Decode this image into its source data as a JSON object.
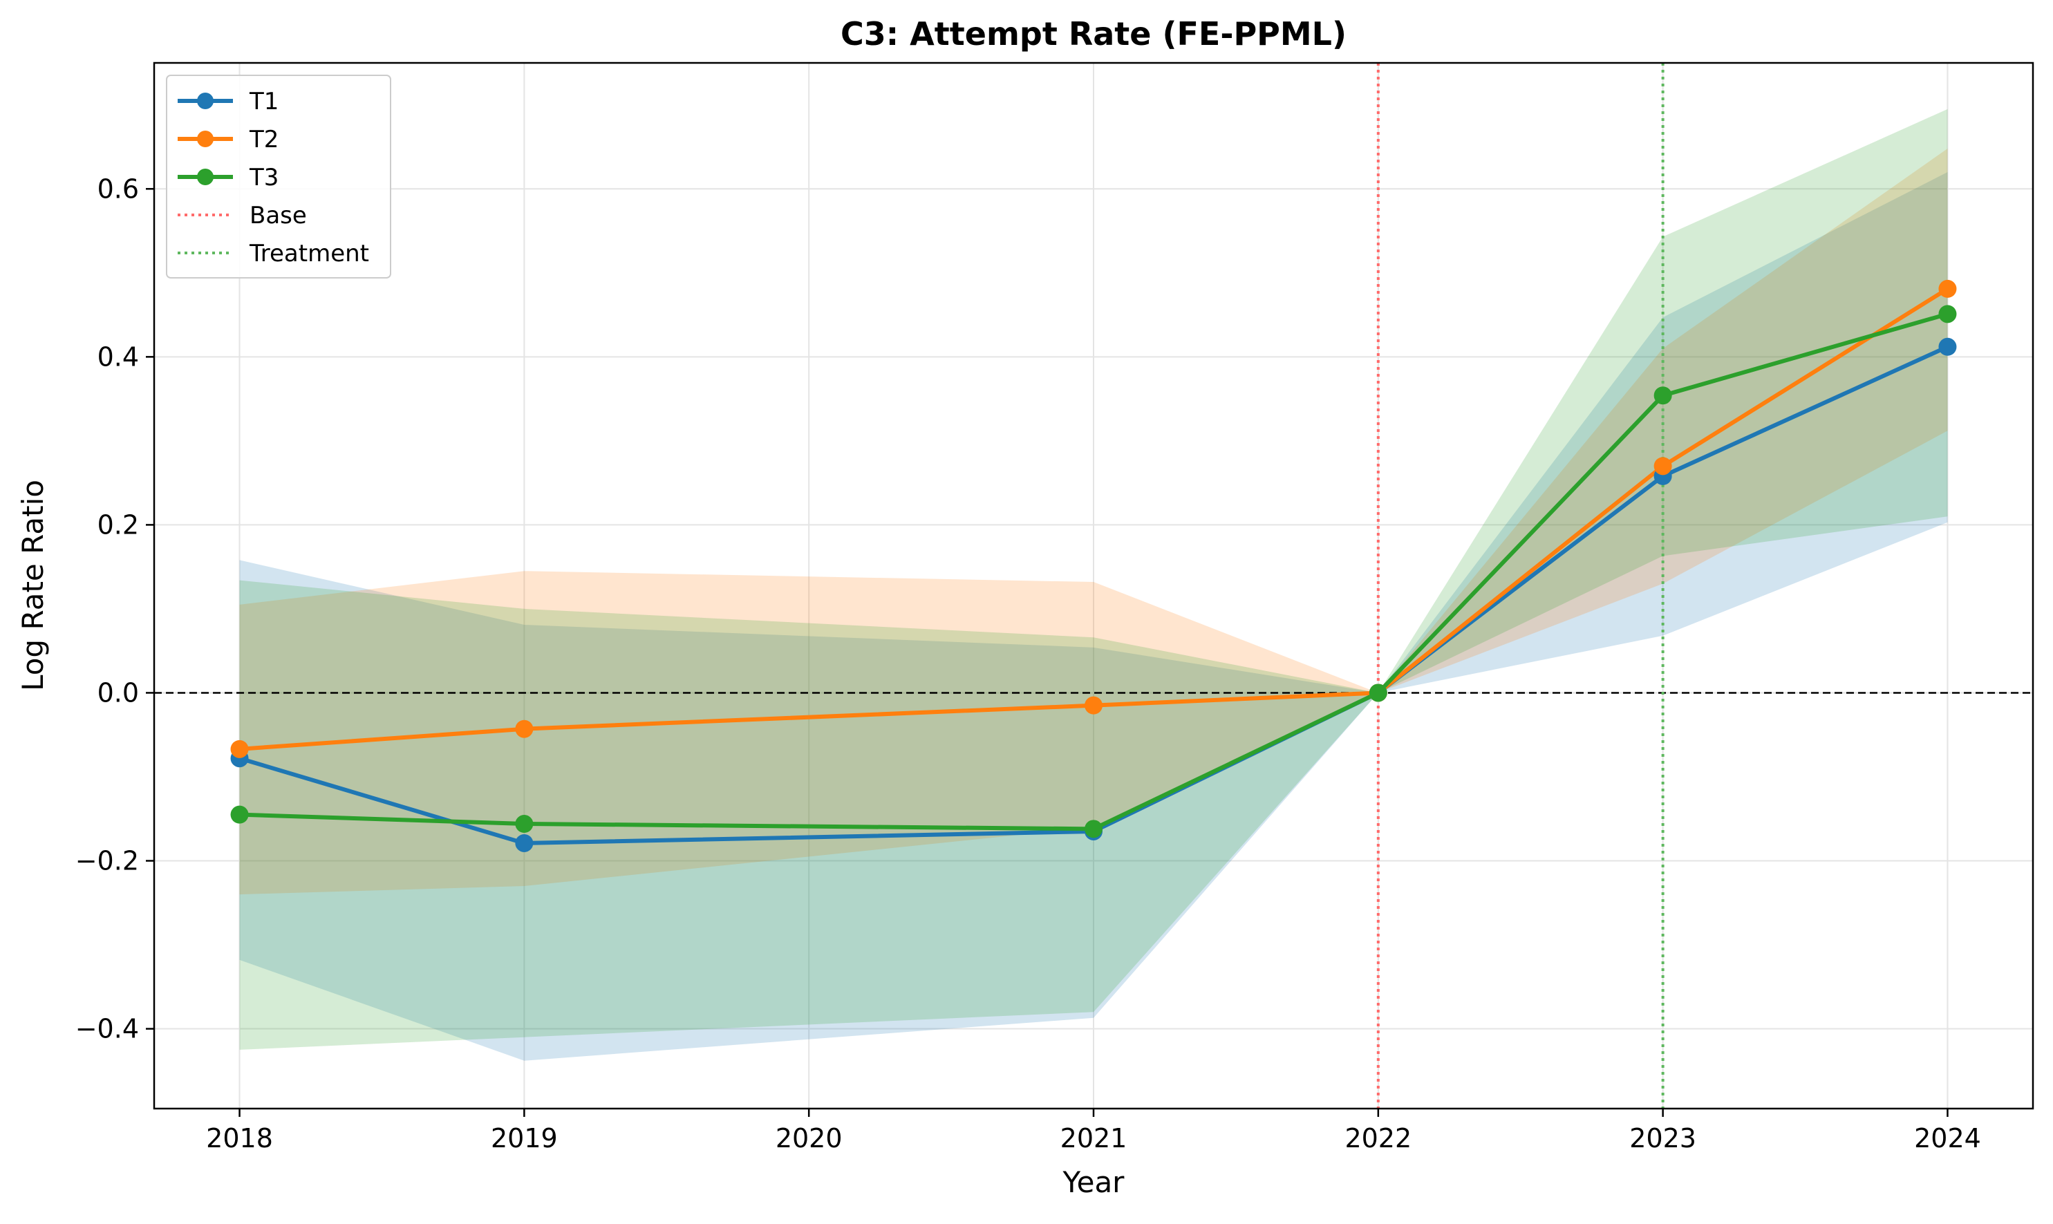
{
  "chart_data": {
    "type": "line",
    "title": "C3: Attempt Rate (FE-PPML)",
    "xlabel": "Year",
    "ylabel": "Log Rate Ratio",
    "x": [
      2018,
      2019,
      2021,
      2022,
      2023,
      2024
    ],
    "xticks": [
      "2018",
      "2019",
      "2020",
      "2021",
      "2022",
      "2023",
      "2024"
    ],
    "yticks": [
      "−0.4",
      "−0.2",
      "0.0",
      "0.2",
      "0.4",
      "0.6"
    ],
    "xlim": [
      2017.7,
      2024.3
    ],
    "ylim": [
      -0.495,
      0.75
    ],
    "grid": true,
    "legend_position": "top-left",
    "series": [
      {
        "name": "T1",
        "color": "#1f77b4",
        "values": [
          -0.078,
          -0.179,
          -0.165,
          0.0,
          0.258,
          0.412
        ],
        "ci_lower": [
          -0.318,
          -0.438,
          -0.387,
          0.0,
          0.068,
          0.203
        ],
        "ci_upper": [
          0.158,
          0.081,
          0.054,
          0.0,
          0.447,
          0.62
        ]
      },
      {
        "name": "T2",
        "color": "#ff7f0e",
        "values": [
          -0.067,
          -0.043,
          -0.015,
          0.0,
          0.27,
          0.481
        ],
        "ci_lower": [
          -0.24,
          -0.23,
          -0.16,
          0.0,
          0.13,
          0.312
        ],
        "ci_upper": [
          0.105,
          0.145,
          0.132,
          0.0,
          0.41,
          0.648
        ]
      },
      {
        "name": "T3",
        "color": "#2ca02c",
        "values": [
          -0.145,
          -0.156,
          -0.162,
          0.0,
          0.354,
          0.451
        ],
        "ci_lower": [
          -0.425,
          -0.41,
          -0.38,
          0.0,
          0.163,
          0.21
        ],
        "ci_upper": [
          0.134,
          0.1,
          0.066,
          0.0,
          0.543,
          0.695
        ]
      }
    ],
    "reference_lines": [
      {
        "name": "Base",
        "x": 2022,
        "color": "#ff6b6b",
        "style": "dotted"
      },
      {
        "name": "Treatment",
        "x": 2023,
        "color": "#5fb85f",
        "style": "dotted"
      }
    ],
    "zero_line": {
      "y": 0,
      "color": "#000000",
      "style": "dashed"
    }
  }
}
